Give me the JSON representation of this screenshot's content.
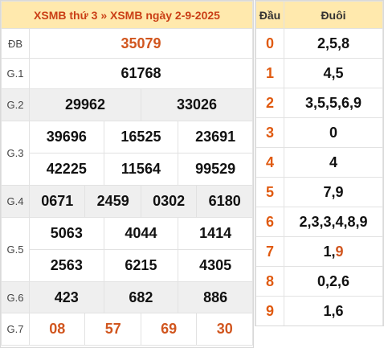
{
  "header": {
    "part1": "XSMB thứ 3",
    "sep": "»",
    "part2": "XSMB ngày 2-9-2025"
  },
  "prizes": {
    "db": {
      "label": "ĐB",
      "values": [
        "35079"
      ]
    },
    "g1": {
      "label": "G.1",
      "values": [
        "61768"
      ]
    },
    "g2": {
      "label": "G.2",
      "values": [
        "29962",
        "33026"
      ]
    },
    "g3": {
      "label": "G.3",
      "values": [
        "39696",
        "16525",
        "23691",
        "42225",
        "11564",
        "99529"
      ]
    },
    "g4": {
      "label": "G.4",
      "values": [
        "0671",
        "2459",
        "0302",
        "6180"
      ]
    },
    "g5": {
      "label": "G.5",
      "values": [
        "5063",
        "4044",
        "1414",
        "2563",
        "6215",
        "4305"
      ]
    },
    "g6": {
      "label": "G.6",
      "values": [
        "423",
        "682",
        "886"
      ]
    },
    "g7": {
      "label": "G.7",
      "values": [
        "08",
        "57",
        "69",
        "30"
      ]
    }
  },
  "loto": {
    "head_label": "Đầu",
    "tail_label": "Đuôi",
    "rows": [
      {
        "dau": "0",
        "duoi": "2,5,8"
      },
      {
        "dau": "1",
        "duoi": "4,5"
      },
      {
        "dau": "2",
        "duoi": "3,5,5,6,9"
      },
      {
        "dau": "3",
        "duoi": "0"
      },
      {
        "dau": "4",
        "duoi": "4"
      },
      {
        "dau": "5",
        "duoi": "7,9"
      },
      {
        "dau": "6",
        "duoi": "2,3,3,4,8,9"
      },
      {
        "dau": "7",
        "duoi_plain": "1,",
        "duoi_hl": "9"
      },
      {
        "dau": "8",
        "duoi": "0,2,6"
      },
      {
        "dau": "9",
        "duoi": "1,6"
      }
    ]
  },
  "colors": {
    "header_bg": "#ffe9ad",
    "accent": "#d1561f",
    "grey_row": "#efefef"
  }
}
